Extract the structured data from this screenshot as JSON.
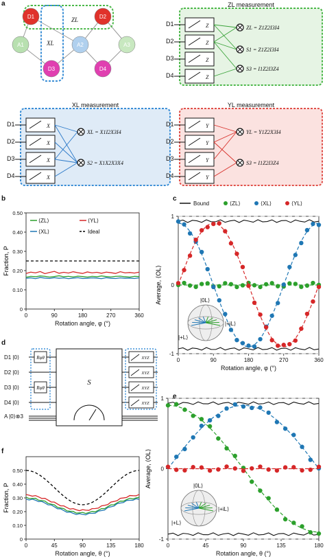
{
  "panel_letters": {
    "a": "a",
    "b": "b",
    "c": "c",
    "d": "d",
    "e": "e",
    "f": "f"
  },
  "lattice": {
    "nodes": [
      {
        "label": "D1",
        "role": "data",
        "color": "#e0322b"
      },
      {
        "label": "D2",
        "role": "data",
        "color": "#e0322b"
      },
      {
        "label": "D3",
        "role": "data",
        "color": "#e040b0"
      },
      {
        "label": "D4",
        "role": "data",
        "color": "#e040b0"
      },
      {
        "label": "A1",
        "role": "ancilla",
        "color": "#b8e0b0"
      },
      {
        "label": "A2",
        "role": "ancilla",
        "color": "#b0d0ee"
      },
      {
        "label": "A3",
        "role": "ancilla",
        "color": "#c8e8c0"
      }
    ],
    "zl_label": "ZL",
    "xl_label": "XL"
  },
  "measure_boxes": [
    {
      "title": "ZL measurement",
      "basis": "Z",
      "bg": "#e6f4e4",
      "border": "#4cb84a",
      "arrow": "#3aa33a",
      "eqs": [
        "ZL = Z1Z2I3I4",
        "S1 = Z1Z2I3I4",
        "S3 = I1Z2I3Z4"
      ]
    },
    {
      "title": "XL measurement",
      "basis": "X",
      "bg": "#dfebf7",
      "border": "#3a8ed6",
      "arrow": "#2a78c8",
      "eqs": [
        "XL = X1I2X3I4",
        "S2 = X1X2X3X4"
      ]
    },
    {
      "title": "YL measurement",
      "basis": "Y",
      "bg": "#fbe2e0",
      "border": "#e0504a",
      "arrow": "#d8302a",
      "eqs": [
        "YL = Y1Z2X3I4",
        "S3 = I1Z2I3Z4"
      ]
    }
  ],
  "qubit_labels": [
    "D1",
    "D2",
    "D3",
    "D4"
  ],
  "chart_data": [
    {
      "id": "b",
      "type": "line",
      "title": "",
      "xlabel": "Rotation angle, φ (°)",
      "ylabel": "Fraction, P",
      "xlim": [
        0,
        360
      ],
      "ylim": [
        0,
        0.5
      ],
      "xticks": [
        "0",
        "90",
        "180",
        "270",
        "360"
      ],
      "legend": [
        "⟨ZL⟩",
        "⟨YL⟩",
        "⟨XL⟩",
        "Ideal"
      ],
      "series": [
        {
          "name": "⟨ZL⟩",
          "color": "#2ca02c",
          "values": [
            0.165,
            0.17,
            0.168,
            0.172,
            0.17,
            0.166,
            0.169,
            0.173,
            0.168,
            0.17,
            0.167,
            0.171,
            0.169,
            0.166,
            0.17,
            0.168,
            0.172,
            0.169,
            0.167,
            0.17,
            0.171,
            0.168,
            0.166,
            0.17,
            0.169
          ]
        },
        {
          "name": "⟨YL⟩",
          "color": "#d62728",
          "values": [
            0.185,
            0.192,
            0.188,
            0.195,
            0.184,
            0.19,
            0.196,
            0.186,
            0.191,
            0.187,
            0.194,
            0.189,
            0.185,
            0.193,
            0.188,
            0.191,
            0.186,
            0.192,
            0.189,
            0.185,
            0.194,
            0.188,
            0.19,
            0.187,
            0.192
          ]
        },
        {
          "name": "⟨XL⟩",
          "color": "#1f77b4",
          "values": [
            0.16,
            0.162,
            0.158,
            0.164,
            0.161,
            0.159,
            0.163,
            0.16,
            0.162,
            0.158,
            0.161,
            0.163,
            0.159,
            0.16,
            0.162,
            0.161,
            0.158,
            0.163,
            0.16,
            0.159,
            0.162,
            0.16,
            0.161,
            0.159,
            0.162
          ]
        },
        {
          "name": "Ideal",
          "color": "#000",
          "dashed": true,
          "values": [
            0.25,
            0.25
          ]
        }
      ]
    },
    {
      "id": "c",
      "type": "scatter",
      "title": "",
      "xlabel": "Rotation angle, φ (°)",
      "ylabel": "Average, ⟨OL⟩",
      "xlim": [
        0,
        360
      ],
      "ylim": [
        -1,
        1
      ],
      "xticks": [
        "0",
        "90",
        "180",
        "270",
        "360"
      ],
      "yticks": [
        "-1",
        "0",
        "1"
      ],
      "legend": [
        "Bound",
        "⟨ZL⟩",
        "⟨XL⟩",
        "⟨YL⟩"
      ],
      "bloch_labels": [
        "|0L⟩",
        "|+iL⟩",
        "|+L⟩"
      ],
      "series": [
        {
          "name": "⟨ZL⟩",
          "color": "#2ca02c",
          "fn": "z0"
        },
        {
          "name": "⟨XL⟩",
          "color": "#1f77b4",
          "fn": "cos"
        },
        {
          "name": "⟨YL⟩",
          "color": "#d62728",
          "fn": "sin"
        }
      ]
    },
    {
      "id": "e",
      "type": "scatter",
      "title": "",
      "xlabel": "Rotation angle, θ (°)",
      "ylabel": "Average, ⟨OL⟩",
      "xlim": [
        0,
        180
      ],
      "ylim": [
        -1,
        1
      ],
      "xticks": [
        "0",
        "45",
        "90",
        "135",
        "180"
      ],
      "yticks": [
        "-1",
        "0",
        "1"
      ],
      "bloch_labels": [
        "|0L⟩",
        "|+iL⟩",
        "|+L⟩"
      ],
      "series": [
        {
          "name": "⟨ZL⟩",
          "color": "#2ca02c",
          "fn": "cos"
        },
        {
          "name": "⟨XL⟩",
          "color": "#1f77b4",
          "fn": "sin"
        },
        {
          "name": "⟨YL⟩",
          "color": "#d62728",
          "fn": "z0"
        }
      ]
    },
    {
      "id": "f",
      "type": "line",
      "title": "",
      "xlabel": "Rotation angle, θ (°)",
      "ylabel": "Fraction, P",
      "xlim": [
        0,
        180
      ],
      "ylim": [
        0,
        0.6
      ],
      "xticks": [
        "0",
        "45",
        "90",
        "135",
        "180"
      ],
      "yticks": [
        "0",
        "0.10",
        "0.20",
        "0.30",
        "0.40",
        "0.50"
      ],
      "series": [
        {
          "name": "Ideal",
          "color": "#000",
          "dashed": true,
          "fn": "ideal"
        },
        {
          "name": "⟨YL⟩",
          "color": "#d62728",
          "offset": 0.03
        },
        {
          "name": "⟨ZL⟩",
          "color": "#2ca02c",
          "offset": 0.01
        },
        {
          "name": "⟨XL⟩",
          "color": "#1f77b4",
          "offset": 0.0
        }
      ]
    }
  ],
  "circuit": {
    "rows": [
      "D1 |0⟩",
      "D2 |0⟩",
      "D3 |0⟩",
      "D4 |0⟩",
      "A |0⟩⊗3"
    ],
    "gate_r1": "Rφθ",
    "gate_r3": "Rφθ",
    "big_gate": "S",
    "meas": "XYZ"
  },
  "b_yticks": [
    "0",
    "0.10",
    "0.20",
    "0.30",
    "0.40",
    "0.50"
  ],
  "b_legend_ideal": "Ideal"
}
